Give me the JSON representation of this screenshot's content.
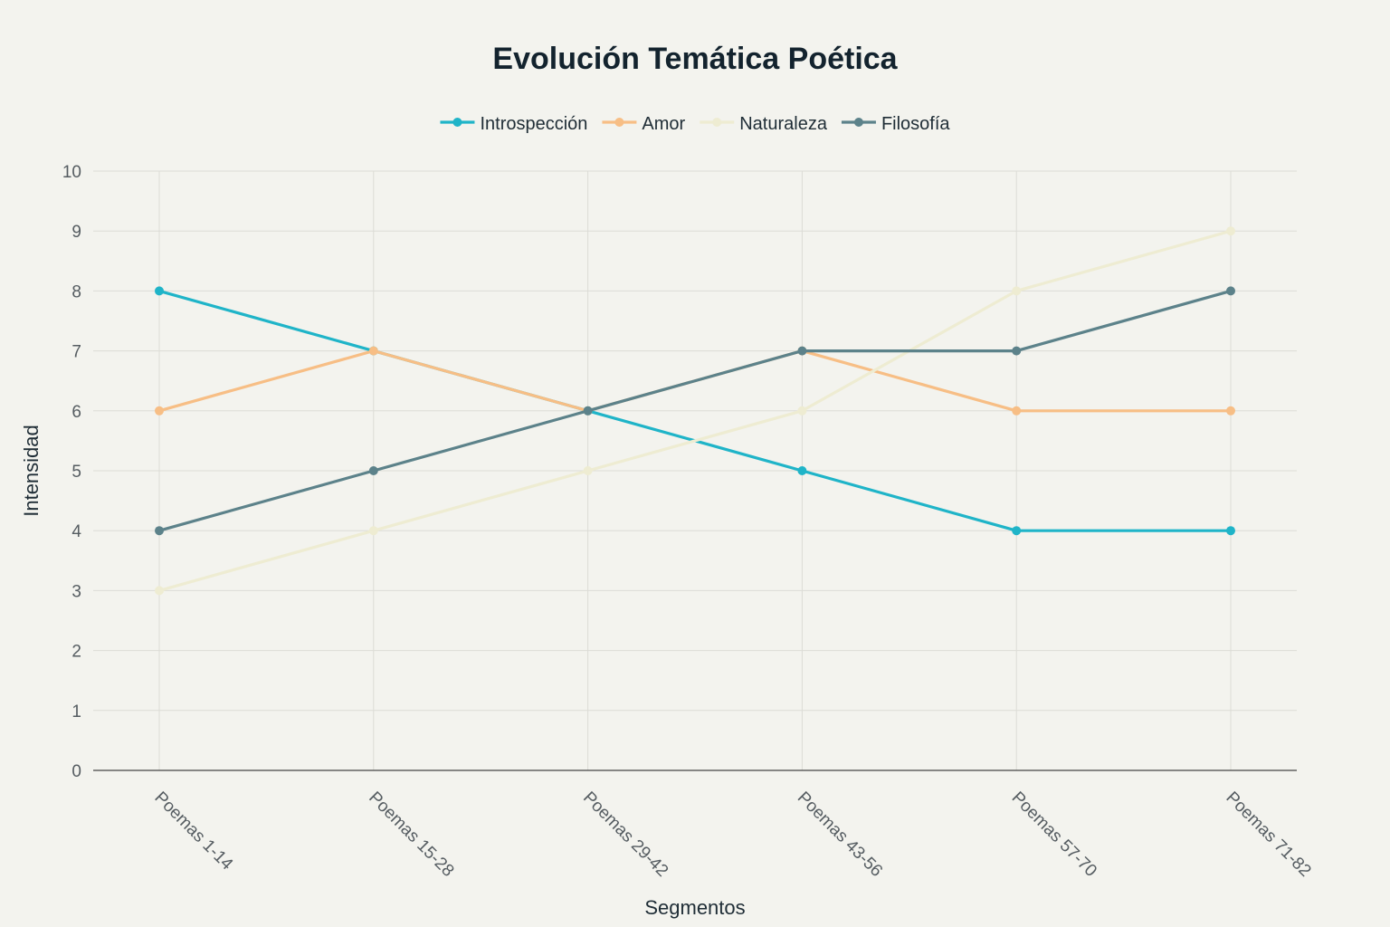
{
  "chart_data": {
    "type": "line",
    "title": "Evolución Temática Poética",
    "xlabel": "Segmentos",
    "ylabel": "Intensidad",
    "ylim": [
      0,
      10
    ],
    "yticks": [
      "0",
      "1",
      "2",
      "3",
      "4",
      "5",
      "6",
      "7",
      "8",
      "9",
      "10"
    ],
    "grid": true,
    "legend_position": "top-center",
    "categories": [
      "Poemas 1-14",
      "Poemas 15-28",
      "Poemas 29-42",
      "Poemas 43-56",
      "Poemas 57-70",
      "Poemas 71-82"
    ],
    "series": [
      {
        "name": "Introspección",
        "color": "#1fb4c8",
        "values": [
          8,
          7,
          6,
          5,
          4,
          4
        ]
      },
      {
        "name": "Amor",
        "color": "#f7be85",
        "values": [
          6,
          7,
          6,
          7,
          6,
          6
        ]
      },
      {
        "name": "Naturaleza",
        "color": "#eeecd2",
        "values": [
          3,
          4,
          5,
          6,
          8,
          9
        ]
      },
      {
        "name": "Filosofía",
        "color": "#5c828a",
        "values": [
          4,
          5,
          6,
          7,
          7,
          8
        ]
      }
    ]
  }
}
